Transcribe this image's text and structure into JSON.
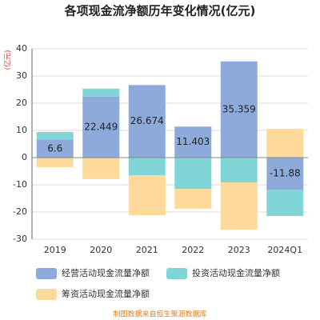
{
  "chart_data": {
    "type": "stacked_bar",
    "title": "各项现金流净额历年变化情况(亿元)",
    "y_label": "(亿元)",
    "categories": [
      "2019",
      "2020",
      "2021",
      "2022",
      "2023",
      "2024Q1"
    ],
    "series": [
      {
        "name": "经营活动现金流量净额",
        "color": "#8eaadb",
        "values": [
          6.6,
          22.449,
          26.674,
          11.403,
          35.359,
          -11.88
        ],
        "labels": true
      },
      {
        "name": "投资活动现金流量净额",
        "color": "#80d5d6",
        "values": [
          2.8,
          2.9,
          -6.5,
          -11.5,
          -9.1,
          -9.6
        ]
      },
      {
        "name": "筹资活动现金流量净额",
        "color": "#fdd99c",
        "values": [
          -3.5,
          -7.9,
          -14.7,
          -7.3,
          -17.4,
          10.6
        ]
      }
    ],
    "ylim": [
      -30,
      40
    ],
    "yticks": [
      -30,
      -20,
      -10,
      0,
      10,
      20,
      30,
      40
    ],
    "grid": true,
    "source": "制图数据来自恒生聚源数据库"
  }
}
